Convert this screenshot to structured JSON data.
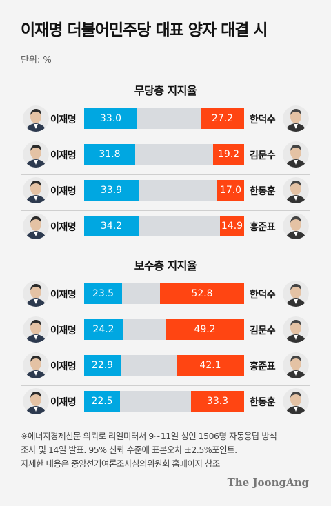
{
  "title": "이재명 더불어민주당 대표 양자 대결 시",
  "unit": "단위: %",
  "colors": {
    "left": "#00a7e1",
    "right": "#ff4512",
    "track": "#d8dbdf"
  },
  "chart_data": [
    {
      "type": "bar",
      "title": "무당층 지지율",
      "xlim": [
        0,
        100
      ],
      "rows": [
        {
          "left_name": "이재명",
          "left_value": 33.0,
          "left_label": "33.0",
          "right_name": "한덕수",
          "right_value": 27.2,
          "right_label": "27.2"
        },
        {
          "left_name": "이재명",
          "left_value": 31.8,
          "left_label": "31.8",
          "right_name": "김문수",
          "right_value": 19.2,
          "right_label": "19.2"
        },
        {
          "left_name": "이재명",
          "left_value": 33.9,
          "left_label": "33.9",
          "right_name": "한동훈",
          "right_value": 17.0,
          "right_label": "17.0"
        },
        {
          "left_name": "이재명",
          "left_value": 34.2,
          "left_label": "34.2",
          "right_name": "홍준표",
          "right_value": 14.9,
          "right_label": "14.9"
        }
      ]
    },
    {
      "type": "bar",
      "title": "보수층 지지율",
      "xlim": [
        0,
        100
      ],
      "rows": [
        {
          "left_name": "이재명",
          "left_value": 23.5,
          "left_label": "23.5",
          "right_name": "한덕수",
          "right_value": 52.8,
          "right_label": "52.8"
        },
        {
          "left_name": "이재명",
          "left_value": 24.2,
          "left_label": "24.2",
          "right_name": "김문수",
          "right_value": 49.2,
          "right_label": "49.2"
        },
        {
          "left_name": "이재명",
          "left_value": 22.9,
          "left_label": "22.9",
          "right_name": "홍준표",
          "right_value": 42.1,
          "right_label": "42.1"
        },
        {
          "left_name": "이재명",
          "left_value": 22.5,
          "left_label": "22.5",
          "right_name": "한동훈",
          "right_value": 33.3,
          "right_label": "33.3"
        }
      ]
    }
  ],
  "footnote": [
    "※에너지경제신문 의뢰로 리얼미터서 9~11일 성인 1506명 자동응답 방식",
    "조사 및 14일 발표. 95% 신뢰 수준에 표본오차 ±2.5%포인트.",
    "자세한 내용은 중앙선거여론조사심의위원회 홈페이지 참조"
  ],
  "logo": "The JoongAng"
}
